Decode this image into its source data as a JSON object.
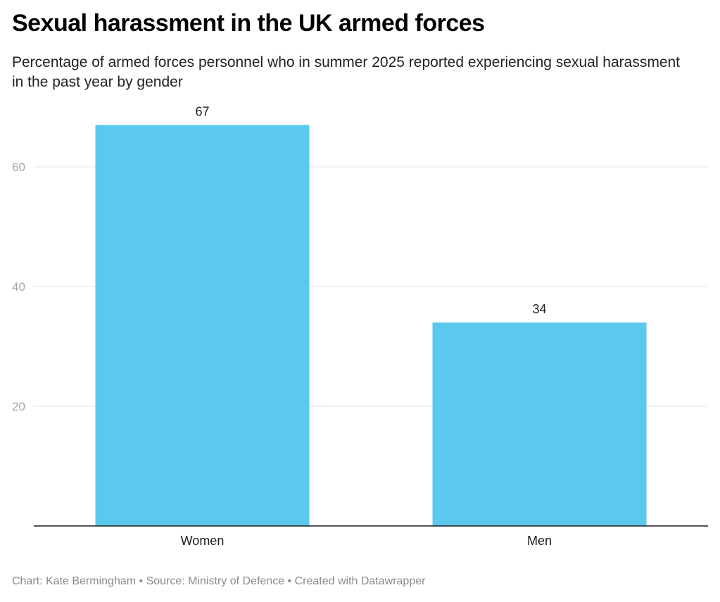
{
  "header": {
    "title": "Sexual harassment in the UK armed forces",
    "subtitle": "Percentage of armed forces personnel who in summer 2025 reported experiencing sexual harassment in the past year by gender"
  },
  "footer": {
    "text": "Chart: Kate Bermingham • Source: Ministry of Defence • Created with Datawrapper"
  },
  "colors": {
    "bar": "#5ac9ed",
    "gridline": "#e6e6e6",
    "baseline": "#1a1a1a"
  },
  "chart_data": {
    "type": "bar",
    "title": "Sexual harassment in the UK armed forces",
    "subtitle": "Percentage of armed forces personnel who in summer 2025 reported experiencing sexual harassment in the past year by gender",
    "categories": [
      "Women",
      "Men"
    ],
    "values": [
      67,
      34
    ],
    "value_labels": [
      "67",
      "34"
    ],
    "xlabel": "",
    "ylabel": "",
    "ylim": [
      0,
      70
    ],
    "yticks": [
      20,
      40,
      60
    ],
    "ytick_labels": [
      "20",
      "40",
      "60"
    ],
    "grid": true,
    "legend": "none"
  }
}
